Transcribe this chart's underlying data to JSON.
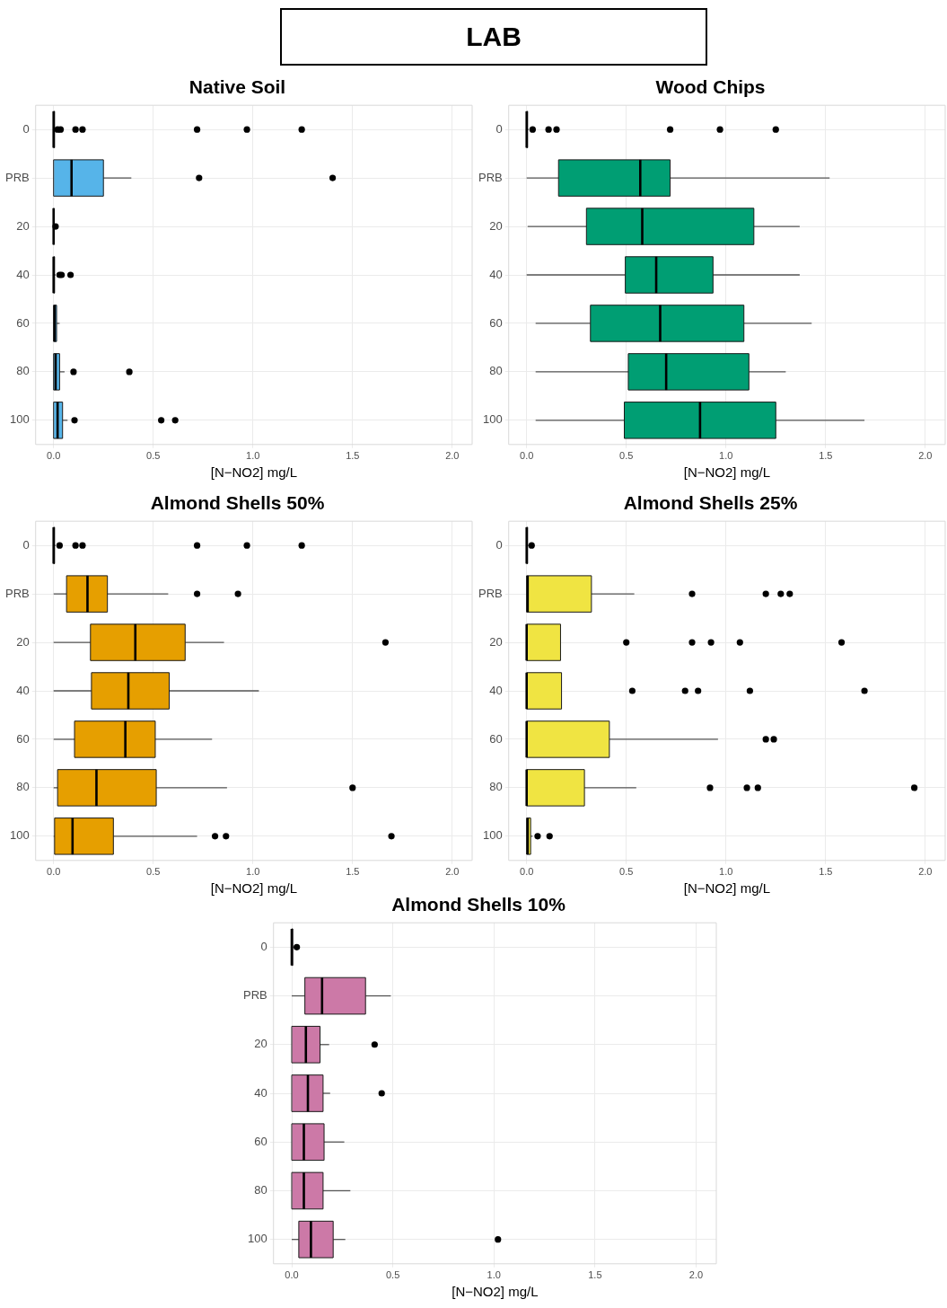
{
  "chart_data": [
    {
      "type": "other",
      "title": "LAB"
    },
    {
      "type": "box",
      "title": "Native Soil",
      "xlabel": "[N−NO2] mg/L",
      "orientation": "horizontal",
      "grid": true,
      "categories": [
        "0",
        "PRB",
        "20",
        "40",
        "60",
        "80",
        "100"
      ],
      "xlim": [
        -0.09,
        2.1
      ],
      "xticks": [
        {
          "value": 0,
          "label": "0.0"
        },
        {
          "value": 0.5,
          "label": "0.5"
        },
        {
          "value": 1,
          "label": "1.0"
        },
        {
          "value": 1.5,
          "label": "1.5"
        },
        {
          "value": 2,
          "label": "2.0"
        }
      ],
      "series": [
        {
          "color": "#56b4e9",
          "boxes": [
            {
              "low": 0,
              "q1": 0,
              "median": 0,
              "q3": 0.005,
              "high": 0.01,
              "outliers": [
                0.02,
                0.035,
                0.11,
                0.145,
                0.72,
                0.97,
                1.245
              ]
            },
            {
              "low": 0,
              "q1": 0,
              "median": 0.09,
              "q3": 0.25,
              "high": 0.39,
              "outliers": [
                0.73,
                1.4
              ]
            },
            {
              "low": 0,
              "q1": 0,
              "median": 0,
              "q3": 0.002,
              "high": 0.005,
              "outliers": [
                0.01
              ]
            },
            {
              "low": 0,
              "q1": 0,
              "median": 0,
              "q3": 0.005,
              "high": 0.01,
              "outliers": [
                0.03,
                0.04,
                0.085
              ]
            },
            {
              "low": 0,
              "q1": 0,
              "median": 0.005,
              "q3": 0.015,
              "high": 0.03
            },
            {
              "low": 0,
              "q1": 0,
              "median": 0.01,
              "q3": 0.03,
              "high": 0.055,
              "outliers": [
                0.1,
                0.38
              ]
            },
            {
              "low": 0,
              "q1": 0,
              "median": 0.02,
              "q3": 0.045,
              "high": 0.07,
              "outliers": [
                0.105,
                0.54,
                0.61
              ]
            }
          ]
        }
      ]
    },
    {
      "type": "box",
      "title": "Wood Chips",
      "xlabel": "[N−NO2] mg/L",
      "orientation": "horizontal",
      "grid": true,
      "categories": [
        "0",
        "PRB",
        "20",
        "40",
        "60",
        "80",
        "100"
      ],
      "xlim": [
        -0.09,
        2.1
      ],
      "xticks": [
        {
          "value": 0,
          "label": "0.0"
        },
        {
          "value": 0.5,
          "label": "0.5"
        },
        {
          "value": 1,
          "label": "1.0"
        },
        {
          "value": 1.5,
          "label": "1.5"
        },
        {
          "value": 2,
          "label": "2.0"
        }
      ],
      "series": [
        {
          "color": "#009e73",
          "boxes": [
            {
              "low": 0,
              "q1": 0,
              "median": 0,
              "q3": 0.005,
              "high": 0.01,
              "outliers": [
                0.03,
                0.11,
                0.15,
                0.72,
                0.97,
                1.25
              ]
            },
            {
              "low": 0,
              "q1": 0.16,
              "median": 0.57,
              "q3": 0.72,
              "high": 1.52
            },
            {
              "low": 0.005,
              "q1": 0.3,
              "median": 0.58,
              "q3": 1.14,
              "high": 1.37
            },
            {
              "low": 0,
              "q1": 0.495,
              "median": 0.65,
              "q3": 0.935,
              "high": 1.37
            },
            {
              "low": 0.045,
              "q1": 0.32,
              "median": 0.67,
              "q3": 1.09,
              "high": 1.43
            },
            {
              "low": 0.045,
              "q1": 0.51,
              "median": 0.7,
              "q3": 1.115,
              "high": 1.3
            },
            {
              "low": 0.045,
              "q1": 0.49,
              "median": 0.87,
              "q3": 1.25,
              "high": 1.695
            }
          ]
        }
      ]
    },
    {
      "type": "box",
      "title": "Almond Shells 50%",
      "xlabel": "[N−NO2] mg/L",
      "orientation": "horizontal",
      "grid": true,
      "categories": [
        "0",
        "PRB",
        "20",
        "40",
        "60",
        "80",
        "100"
      ],
      "xlim": [
        -0.09,
        2.1
      ],
      "xticks": [
        {
          "value": 0,
          "label": "0.0"
        },
        {
          "value": 0.5,
          "label": "0.5"
        },
        {
          "value": 1,
          "label": "1.0"
        },
        {
          "value": 1.5,
          "label": "1.5"
        },
        {
          "value": 2,
          "label": "2.0"
        }
      ],
      "series": [
        {
          "color": "#e69f00",
          "boxes": [
            {
              "low": 0,
              "q1": 0,
              "median": 0,
              "q3": 0.005,
              "high": 0.01,
              "outliers": [
                0.03,
                0.11,
                0.145,
                0.72,
                0.97,
                1.245
              ]
            },
            {
              "low": 0,
              "q1": 0.065,
              "median": 0.17,
              "q3": 0.27,
              "high": 0.575,
              "outliers": [
                0.72,
                0.925
              ]
            },
            {
              "low": 0,
              "q1": 0.185,
              "median": 0.41,
              "q3": 0.66,
              "high": 0.855,
              "outliers": [
                1.665
              ]
            },
            {
              "low": 0,
              "q1": 0.19,
              "median": 0.375,
              "q3": 0.58,
              "high": 1.03
            },
            {
              "low": 0,
              "q1": 0.105,
              "median": 0.36,
              "q3": 0.51,
              "high": 0.795
            },
            {
              "low": 0,
              "q1": 0.02,
              "median": 0.215,
              "q3": 0.515,
              "high": 0.87,
              "outliers": [
                1.5
              ]
            },
            {
              "low": 0,
              "q1": 0.005,
              "median": 0.095,
              "q3": 0.3,
              "high": 0.72,
              "outliers": [
                0.81,
                0.865,
                1.695
              ]
            }
          ]
        }
      ]
    },
    {
      "type": "box",
      "title": "Almond Shells 25%",
      "xlabel": "[N−NO2] mg/L",
      "orientation": "horizontal",
      "grid": true,
      "categories": [
        "0",
        "PRB",
        "20",
        "40",
        "60",
        "80",
        "100"
      ],
      "xlim": [
        -0.09,
        2.1
      ],
      "xticks": [
        {
          "value": 0,
          "label": "0.0"
        },
        {
          "value": 0.5,
          "label": "0.5"
        },
        {
          "value": 1,
          "label": "1.0"
        },
        {
          "value": 1.5,
          "label": "1.5"
        },
        {
          "value": 2,
          "label": "2.0"
        }
      ],
      "series": [
        {
          "color": "#f0e442",
          "boxes": [
            {
              "low": 0,
              "q1": 0,
              "median": 0,
              "q3": 0.005,
              "high": 0.01,
              "outliers": [
                0.025
              ]
            },
            {
              "low": 0,
              "q1": 0,
              "median": 0.005,
              "q3": 0.325,
              "high": 0.54,
              "outliers": [
                0.83,
                1.2,
                1.275,
                1.32
              ]
            },
            {
              "low": 0,
              "q1": 0,
              "median": 0,
              "q3": 0.17,
              "high": 0.17,
              "outliers": [
                0.5,
                0.83,
                0.925,
                1.07,
                1.58
              ]
            },
            {
              "low": 0,
              "q1": 0,
              "median": 0,
              "q3": 0.175,
              "high": 0.175,
              "outliers": [
                0.53,
                0.795,
                0.86,
                1.12,
                1.695
              ]
            },
            {
              "low": 0,
              "q1": 0,
              "median": 0,
              "q3": 0.415,
              "high": 0.96,
              "outliers": [
                1.2,
                1.24
              ]
            },
            {
              "low": 0,
              "q1": 0,
              "median": 0,
              "q3": 0.29,
              "high": 0.55,
              "outliers": [
                0.92,
                1.105,
                1.16,
                1.945
              ]
            },
            {
              "low": 0,
              "q1": 0,
              "median": 0.005,
              "q3": 0.02,
              "high": 0.03,
              "outliers": [
                0.055,
                0.115
              ]
            }
          ]
        }
      ]
    },
    {
      "type": "box",
      "title": "Almond Shells 10%",
      "xlabel": "[N−NO2] mg/L",
      "orientation": "horizontal",
      "grid": true,
      "categories": [
        "0",
        "PRB",
        "20",
        "40",
        "60",
        "80",
        "100"
      ],
      "xlim": [
        -0.09,
        2.1
      ],
      "xticks": [
        {
          "value": 0,
          "label": "0.0"
        },
        {
          "value": 0.5,
          "label": "0.5"
        },
        {
          "value": 1,
          "label": "1.0"
        },
        {
          "value": 1.5,
          "label": "1.5"
        },
        {
          "value": 2,
          "label": "2.0"
        }
      ],
      "series": [
        {
          "color": "#cc79a7",
          "boxes": [
            {
              "low": 0,
              "q1": 0,
              "median": 0,
              "q3": 0.005,
              "high": 0.01,
              "outliers": [
                0.025
              ]
            },
            {
              "low": 0,
              "q1": 0.065,
              "median": 0.15,
              "q3": 0.365,
              "high": 0.49
            },
            {
              "low": 0,
              "q1": 0,
              "median": 0.07,
              "q3": 0.14,
              "high": 0.185,
              "outliers": [
                0.41
              ]
            },
            {
              "low": 0,
              "q1": 0,
              "median": 0.08,
              "q3": 0.155,
              "high": 0.19,
              "outliers": [
                0.445
              ]
            },
            {
              "low": 0,
              "q1": 0,
              "median": 0.06,
              "q3": 0.16,
              "high": 0.26
            },
            {
              "low": 0,
              "q1": 0,
              "median": 0.06,
              "q3": 0.155,
              "high": 0.29
            },
            {
              "low": 0,
              "q1": 0.035,
              "median": 0.095,
              "q3": 0.205,
              "high": 0.265,
              "outliers": [
                1.02
              ]
            }
          ]
        }
      ]
    }
  ]
}
